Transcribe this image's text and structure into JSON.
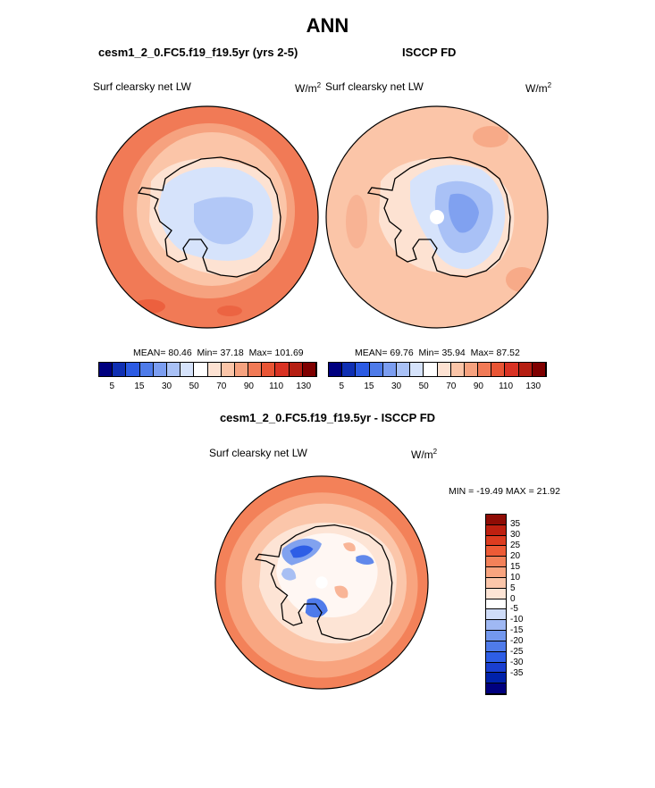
{
  "page_title": "ANN",
  "colors": {
    "model_palette": [
      "#00007f",
      "#0f2fb3",
      "#2c5be3",
      "#4e7be9",
      "#7b9df0",
      "#a9c1f6",
      "#d6e3fb",
      "#ffffff",
      "#fde2d2",
      "#fbc5a8",
      "#f6a27f",
      "#f17a56",
      "#e95535",
      "#d93223",
      "#b51e12",
      "#7f0000"
    ],
    "diff_palette": [
      "#00007f",
      "#0022aa",
      "#1a3fd0",
      "#2e5ee6",
      "#4f7bea",
      "#7398ee",
      "#9fb8f3",
      "#cfdcf8",
      "#ffffff",
      "#fde4d5",
      "#fbc6aa",
      "#f8a47f",
      "#f38159",
      "#ed5b36",
      "#dc3c20",
      "#be2010",
      "#8f0c05"
    ],
    "coast": "#000000"
  },
  "panels": [
    {
      "header": "cesm1_2_0.FC5.f19_f19.5yr (yrs 2-5)",
      "variable": "Surf clearsky net LW",
      "units_base": "W/m",
      "units_exp": "2",
      "stats": {
        "mean_label": "MEAN=",
        "mean": "80.46",
        "min_label": "Min=",
        "min": "37.18",
        "max_label": "Max=",
        "max": "101.69"
      },
      "colorbar_ticks": [
        "5",
        "15",
        "30",
        "50",
        "70",
        "90",
        "110",
        "130"
      ]
    },
    {
      "header": "ISCCP FD",
      "variable": "Surf clearsky net LW",
      "units_base": "W/m",
      "units_exp": "2",
      "stats": {
        "mean_label": "MEAN=",
        "mean": "69.76",
        "min_label": "Min=",
        "min": "35.94",
        "max_label": "Max=",
        "max": "87.52"
      },
      "colorbar_ticks": [
        "5",
        "15",
        "30",
        "50",
        "70",
        "90",
        "110",
        "130"
      ]
    }
  ],
  "difference": {
    "header": "cesm1_2_0.FC5.f19_f19.5yr - ISCCP FD",
    "variable": "Surf clearsky net LW",
    "units_base": "W/m",
    "units_exp": "2",
    "min_label": "MIN =",
    "min": "-19.49",
    "max_label": "MAX =",
    "max": "21.92",
    "colorbar_ticks": [
      "35",
      "30",
      "25",
      "20",
      "15",
      "10",
      "5",
      "0",
      "-5",
      "-10",
      "-15",
      "-20",
      "-25",
      "-30",
      "-35"
    ]
  }
}
